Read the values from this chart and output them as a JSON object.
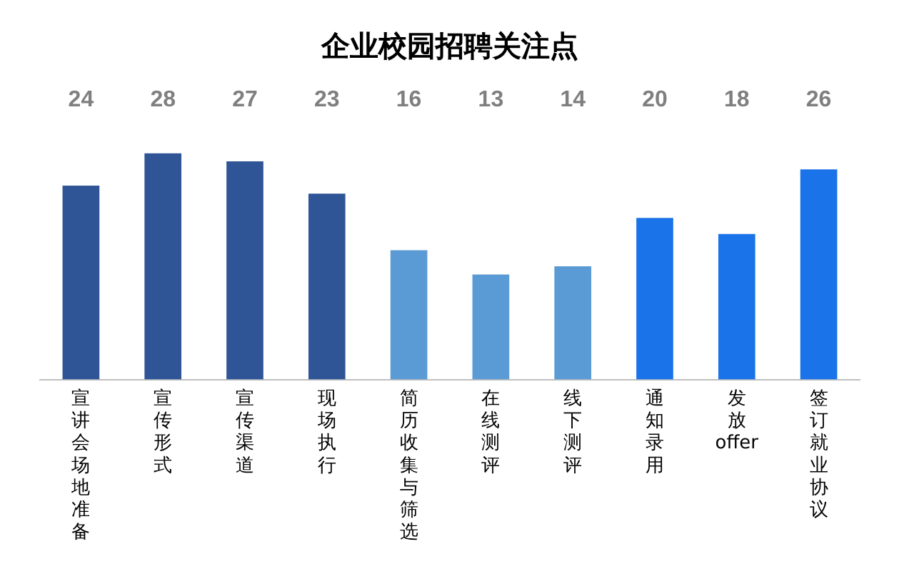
{
  "chart_data": {
    "type": "bar",
    "title": "企业校园招聘关注点",
    "categories": [
      "宣讲会场地准备",
      "宣传形式",
      "宣传渠道",
      "现场执行",
      "简历收集与筛选",
      "在线测评",
      "线下测评",
      "通知录用",
      "发放offer",
      "签订就业协议"
    ],
    "values": [
      24,
      28,
      27,
      23,
      16,
      13,
      14,
      20,
      18,
      26
    ],
    "colors": [
      "#2f5597",
      "#2f5597",
      "#2f5597",
      "#2f5597",
      "#5b9bd5",
      "#5b9bd5",
      "#5b9bd5",
      "#1a73e8",
      "#1a73e8",
      "#1a73e8"
    ],
    "data_labels": true,
    "grid": false,
    "legend": false
  }
}
